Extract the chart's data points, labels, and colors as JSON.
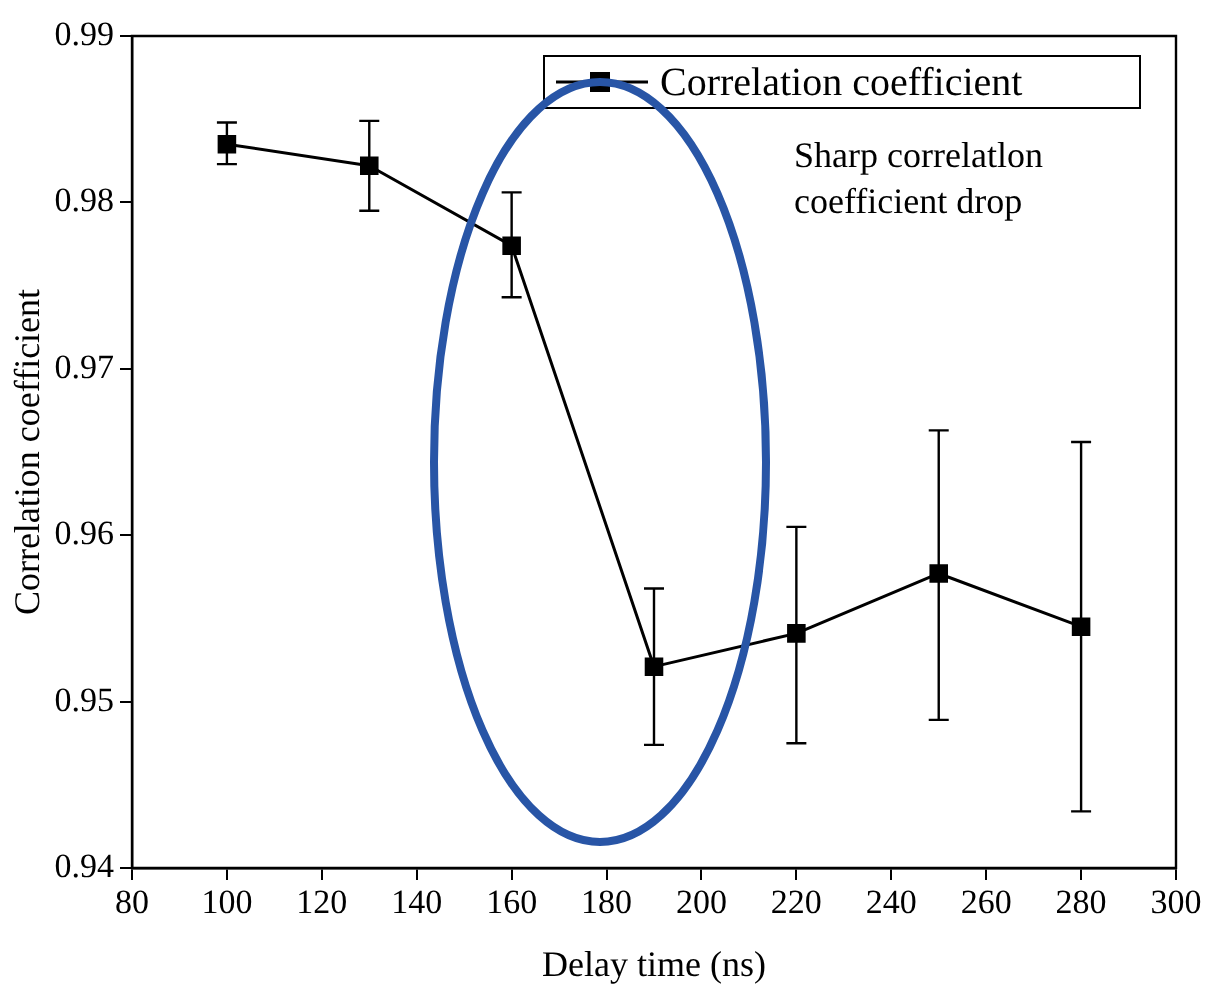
{
  "chart_data": {
    "type": "line",
    "xlabel": "Delay time (ns)",
    "ylabel": "Correlation coefficient",
    "x": [
      100,
      130,
      160,
      190,
      220,
      250,
      280
    ],
    "series": [
      {
        "name": "Correlation coefficient",
        "color": "#000000",
        "values": [
          0.9835,
          0.9822,
          0.9774,
          0.9521,
          0.9541,
          0.9577,
          0.9545
        ],
        "errors": [
          [
            0.9823,
            0.9848
          ],
          [
            0.9795,
            0.9849
          ],
          [
            0.9743,
            0.9806
          ],
          [
            0.9474,
            0.9568
          ],
          [
            0.9475,
            0.9605
          ],
          [
            0.9489,
            0.9663
          ],
          [
            0.9434,
            0.9656
          ]
        ]
      }
    ],
    "xlim": [
      80,
      300
    ],
    "xticks": [
      80,
      100,
      120,
      140,
      160,
      180,
      200,
      220,
      240,
      260,
      280,
      300
    ],
    "ylim": [
      0.94,
      0.99
    ],
    "yticks": [
      0.94,
      0.95,
      0.96,
      0.97,
      0.98,
      0.99
    ],
    "grid": false,
    "legend": "top right",
    "marker": "square",
    "line_style": "solid",
    "annotations": [
      "Sharp correlatlon\ncoefficient drop"
    ]
  }
}
